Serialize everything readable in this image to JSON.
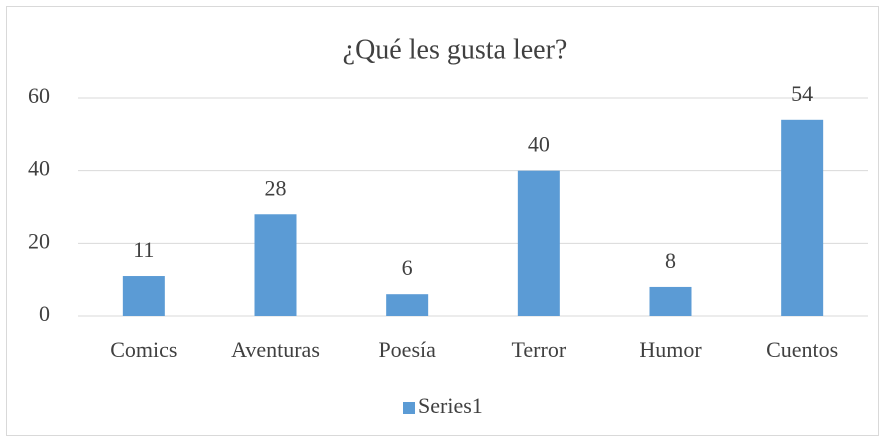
{
  "chart_data": {
    "type": "bar",
    "title": "¿Qué les gusta leer?",
    "categories": [
      "Comics",
      "Aventuras",
      "Poesía",
      "Terror",
      "Humor",
      "Cuentos"
    ],
    "series": [
      {
        "name": "Series1",
        "color": "#5b9bd5",
        "values": [
          11,
          28,
          6,
          40,
          8,
          54
        ]
      }
    ],
    "ylim": [
      0,
      60
    ],
    "yticks": [
      0,
      20,
      40,
      60
    ],
    "grid": true,
    "legend": "bottom",
    "data_labels": true
  }
}
